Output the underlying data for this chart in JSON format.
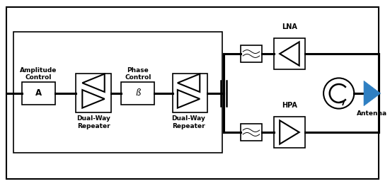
{
  "bg_color": "#ffffff",
  "line_color": "#000000",
  "antenna_color": "#2e7fc2",
  "labels": {
    "amplitude_control": "Amplitude\nControl",
    "phase_control": "Phase\nControl",
    "dual_way_1": "Dual-Way\nRepeater",
    "dual_way_2": "Dual-Way\nRepeater",
    "HPA": "HPA",
    "LNA": "LNA",
    "Antenna": "Antenna",
    "A": "A",
    "B": "ß"
  },
  "font_size": 6.5
}
